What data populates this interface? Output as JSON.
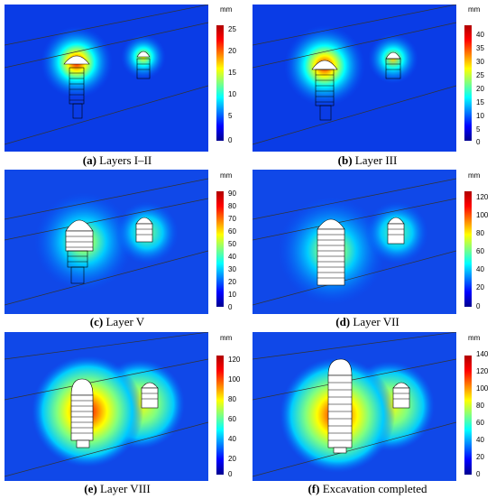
{
  "panels": [
    {
      "id": "a",
      "letter": "(a)",
      "label": "Layers I–II",
      "unit": "mm",
      "ticks": [
        "25",
        "20",
        "15",
        "10",
        "5",
        "0"
      ],
      "max": 27
    },
    {
      "id": "b",
      "letter": "(b)",
      "label": "Layer III",
      "unit": "mm",
      "ticks": [
        "40",
        "35",
        "30",
        "25",
        "20",
        "15",
        "10",
        "5",
        "0"
      ],
      "max": 43
    },
    {
      "id": "c",
      "letter": "(c)",
      "label": "Layer V",
      "unit": "mm",
      "ticks": [
        "90",
        "80",
        "70",
        "60",
        "50",
        "40",
        "30",
        "20",
        "10",
        "0"
      ],
      "max": 92
    },
    {
      "id": "d",
      "letter": "(d)",
      "label": "Layer VII",
      "unit": "mm",
      "ticks": [
        "120",
        "100",
        "80",
        "60",
        "40",
        "20",
        "0"
      ],
      "max": 125
    },
    {
      "id": "e",
      "letter": "(e)",
      "label": "Layer VIII",
      "unit": "mm",
      "ticks": [
        "120",
        "100",
        "80",
        "60",
        "40",
        "20",
        "0"
      ],
      "max": 125
    },
    {
      "id": "f",
      "letter": "(f)",
      "label": "Excavation completed",
      "unit": "mm",
      "ticks": [
        "140",
        "120",
        "100",
        "80",
        "60",
        "40",
        "20",
        "0"
      ],
      "max": 145
    }
  ],
  "colormap": [
    "#00008f",
    "#0000ff",
    "#0080ff",
    "#00ffff",
    "#80ff80",
    "#ffff00",
    "#ff8000",
    "#ff0000",
    "#b00000"
  ]
}
